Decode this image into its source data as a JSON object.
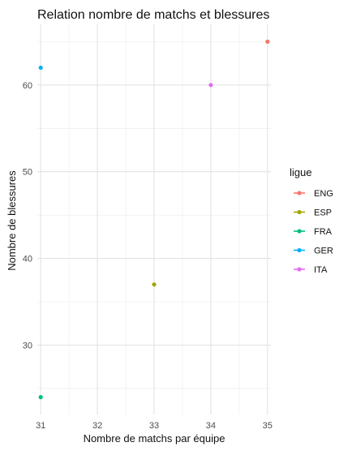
{
  "chart_data": {
    "type": "scatter",
    "title": "Relation nombre de matchs et blessures",
    "xlabel": "Nombre de matchs par équipe",
    "ylabel": "Nombre de blessures",
    "xlim": [
      30.94,
      35.06
    ],
    "ylim": [
      22.0,
      67.0
    ],
    "x_ticks": [
      31,
      32,
      33,
      34,
      35
    ],
    "y_ticks": [
      30,
      40,
      50,
      60
    ],
    "grid": true,
    "legend": {
      "title": "ligue",
      "placement": "right"
    },
    "series": [
      {
        "name": "ENG",
        "color": "#F8766D",
        "points": [
          {
            "x": 35,
            "y": 65
          }
        ]
      },
      {
        "name": "ESP",
        "color": "#A3A500",
        "points": [
          {
            "x": 33,
            "y": 37
          }
        ]
      },
      {
        "name": "FRA",
        "color": "#00BF7D",
        "points": [
          {
            "x": 31,
            "y": 24
          }
        ]
      },
      {
        "name": "GER",
        "color": "#00B0F6",
        "points": [
          {
            "x": 31,
            "y": 62
          }
        ]
      },
      {
        "name": "ITA",
        "color": "#E76BF3",
        "points": [
          {
            "x": 34,
            "y": 60
          }
        ]
      }
    ]
  }
}
